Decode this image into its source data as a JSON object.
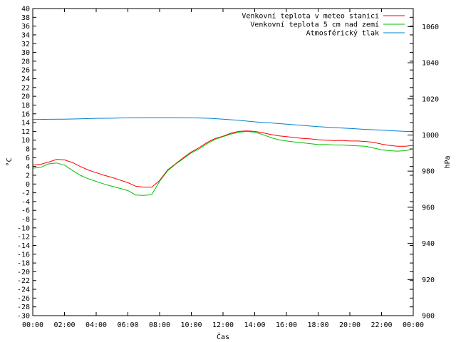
{
  "chart_data": {
    "type": "line",
    "title": "",
    "xlabel": "Čas",
    "ylabel": "°C",
    "y2label": "hPa",
    "x_ticks": [
      "00:00",
      "02:00",
      "04:00",
      "06:00",
      "08:00",
      "10:00",
      "12:00",
      "14:00",
      "16:00",
      "18:00",
      "20:00",
      "22:00",
      "00:00"
    ],
    "x_range_hours": [
      0,
      24
    ],
    "ylim": [
      -30,
      40
    ],
    "y_tick_step": 2,
    "y2lim": [
      900,
      1070
    ],
    "y2_ticks": [
      900,
      920,
      940,
      960,
      980,
      1000,
      1020,
      1040,
      1060
    ],
    "grid": false,
    "legend_position": "top-right",
    "series": [
      {
        "name": "Venkovní teplota v meteo stanici",
        "color": "#ff0000",
        "axis": "left",
        "x": [
          0,
          0.5,
          1,
          1.5,
          2,
          2.5,
          3,
          3.5,
          4,
          4.5,
          5,
          5.5,
          6,
          6.5,
          7,
          7.5,
          8,
          8.5,
          9,
          9.5,
          10,
          10.5,
          11,
          11.5,
          12,
          12.5,
          13,
          13.5,
          14,
          14.5,
          15,
          15.5,
          16,
          16.5,
          17,
          17.5,
          18,
          18.5,
          19,
          19.5,
          20,
          20.5,
          21,
          21.5,
          22,
          22.5,
          23,
          23.5,
          24
        ],
        "values": [
          4.3,
          4.5,
          5.0,
          5.6,
          5.5,
          4.9,
          4.0,
          3.2,
          2.6,
          2.0,
          1.5,
          0.9,
          0.3,
          -0.5,
          -0.7,
          -0.7,
          0.8,
          3.2,
          4.6,
          6.0,
          7.3,
          8.3,
          9.5,
          10.4,
          10.9,
          11.6,
          12.0,
          12.1,
          12.0,
          11.7,
          11.3,
          11.0,
          10.8,
          10.6,
          10.4,
          10.3,
          10.1,
          10.0,
          9.9,
          9.9,
          9.8,
          9.8,
          9.7,
          9.5,
          9.1,
          8.8,
          8.6,
          8.6,
          8.8
        ]
      },
      {
        "name": "Venkovní teplota 5 cm nad zemí",
        "color": "#00c000",
        "axis": "left",
        "x": [
          0,
          0.5,
          1,
          1.5,
          2,
          2.5,
          3,
          3.5,
          4,
          4.5,
          5,
          5.5,
          6,
          6.5,
          7,
          7.5,
          8,
          8.5,
          9,
          9.5,
          10,
          10.5,
          11,
          11.5,
          12,
          12.5,
          13,
          13.5,
          14,
          14.5,
          15,
          15.5,
          16,
          16.5,
          17,
          17.5,
          18,
          18.5,
          19,
          19.5,
          20,
          20.5,
          21,
          21.5,
          22,
          22.5,
          23,
          23.5,
          24
        ],
        "values": [
          3.6,
          3.8,
          4.6,
          4.8,
          4.3,
          3.1,
          2.0,
          1.2,
          0.6,
          0.0,
          -0.5,
          -1.0,
          -1.5,
          -2.5,
          -2.6,
          -2.4,
          0.6,
          3.0,
          4.5,
          5.8,
          7.1,
          8.0,
          9.2,
          10.2,
          10.8,
          11.4,
          11.8,
          12.0,
          11.8,
          11.3,
          10.6,
          10.1,
          9.8,
          9.6,
          9.4,
          9.2,
          9.0,
          9.0,
          8.9,
          8.9,
          8.8,
          8.7,
          8.6,
          8.2,
          7.8,
          7.6,
          7.5,
          7.6,
          8.0
        ]
      },
      {
        "name": "Atmosférický tlak",
        "color": "#0080d0",
        "axis": "right",
        "x": [
          0,
          1,
          2,
          3,
          4,
          5,
          6,
          7,
          8,
          9,
          10,
          11,
          12,
          13,
          14,
          15,
          16,
          17,
          18,
          19,
          20,
          21,
          22,
          23,
          24
        ],
        "values": [
          1008.6,
          1008.7,
          1008.8,
          1009.0,
          1009.2,
          1009.3,
          1009.5,
          1009.6,
          1009.6,
          1009.6,
          1009.5,
          1009.3,
          1008.8,
          1008.1,
          1007.3,
          1006.7,
          1006.0,
          1005.3,
          1004.6,
          1004.1,
          1003.6,
          1003.1,
          1002.7,
          1002.2,
          1001.8
        ]
      }
    ]
  }
}
